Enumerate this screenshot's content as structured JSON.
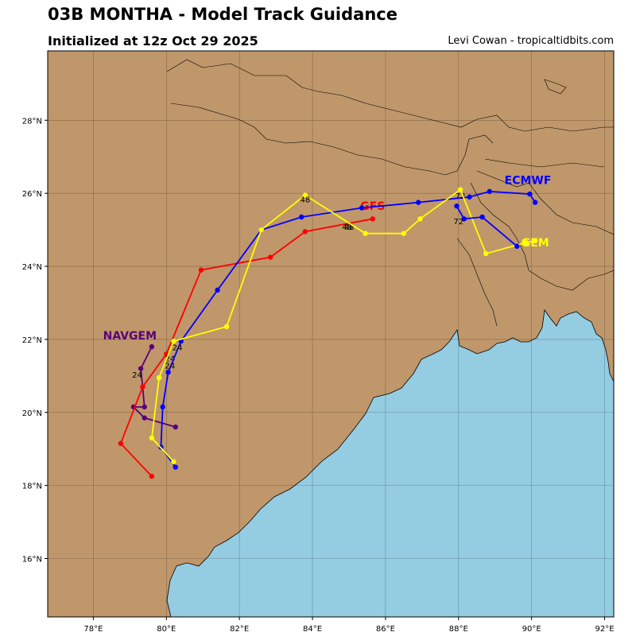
{
  "header": {
    "title": "03B MONTHA - Model Track Guidance",
    "subtitle": "Initialized at 12z Oct 29 2025",
    "credit": "Levi Cowan - tropicaltidbits.com"
  },
  "map": {
    "lon_range": [
      76.75,
      92.25
    ],
    "lat_range": [
      14.4,
      29.9
    ],
    "land_color": "#bf976b",
    "ocean_color": "#94cce2",
    "lon_ticks": [
      {
        "value": 78,
        "label": "78°E"
      },
      {
        "value": 80,
        "label": "80°E"
      },
      {
        "value": 82,
        "label": "82°E"
      },
      {
        "value": 84,
        "label": "84°E"
      },
      {
        "value": 86,
        "label": "86°E"
      },
      {
        "value": 88,
        "label": "88°E"
      },
      {
        "value": 90,
        "label": "90°E"
      },
      {
        "value": 92,
        "label": "92°E"
      }
    ],
    "lat_ticks": [
      {
        "value": 16,
        "label": "16°N"
      },
      {
        "value": 18,
        "label": "18°N"
      },
      {
        "value": 20,
        "label": "20°N"
      },
      {
        "value": 22,
        "label": "22°N"
      },
      {
        "value": 24,
        "label": "24°N"
      },
      {
        "value": 26,
        "label": "26°N"
      },
      {
        "value": 28,
        "label": "28°N"
      }
    ],
    "grid": true
  },
  "chart_data": {
    "type": "scatter",
    "series": [
      {
        "name": "NAVGEM",
        "color": "#5a0078",
        "points": [
          [
            80.25,
            19.6
          ],
          [
            79.4,
            19.85
          ],
          [
            79.1,
            20.15
          ],
          [
            79.4,
            20.15
          ],
          [
            79.3,
            21.2
          ],
          [
            79.6,
            21.8
          ]
        ],
        "hour_labels": [
          {
            "text": "24",
            "lon": 79.2,
            "lat": 20.95
          }
        ],
        "label_pos": [
          79.0,
          22.0
        ]
      },
      {
        "name": "GFS",
        "color": "#ff0000",
        "points": [
          [
            79.6,
            18.25
          ],
          [
            78.75,
            19.15
          ],
          [
            79.35,
            20.7
          ],
          [
            80.0,
            21.6
          ],
          [
            80.95,
            23.9
          ],
          [
            82.85,
            24.25
          ],
          [
            83.8,
            24.95
          ],
          [
            85.65,
            25.3
          ]
        ],
        "hour_labels": [
          {
            "text": "24",
            "lon": 80.1,
            "lat": 21.4
          },
          {
            "text": "48",
            "lon": 84.95,
            "lat": 25.0
          }
        ],
        "label_pos": [
          85.65,
          25.55
        ]
      },
      {
        "name": "ECMWF",
        "color": "#0000ff",
        "points": [
          [
            80.25,
            18.5
          ],
          [
            79.85,
            19.05
          ],
          [
            79.9,
            20.15
          ],
          [
            80.05,
            21.1
          ],
          [
            80.4,
            21.95
          ],
          [
            81.4,
            23.35
          ],
          [
            82.6,
            25.0
          ],
          [
            83.7,
            25.35
          ],
          [
            85.35,
            25.6
          ],
          [
            86.9,
            25.75
          ],
          [
            88.3,
            25.9
          ],
          [
            88.85,
            26.05
          ],
          [
            89.95,
            25.98
          ],
          [
            90.1,
            25.75
          ]
        ],
        "hour_labels": [
          {
            "text": "24",
            "lon": 80.1,
            "lat": 21.2
          },
          {
            "text": "48",
            "lon": 85.0,
            "lat": 25.0
          },
          {
            "text": "72",
            "lon": 88.05,
            "lat": 25.85
          }
        ],
        "label_pos": [
          89.9,
          26.25
        ]
      },
      {
        "name": "GEM",
        "color": "#ffff00",
        "points": [
          [
            80.2,
            18.65
          ],
          [
            79.6,
            19.3
          ],
          [
            79.8,
            20.95
          ],
          [
            80.2,
            21.95
          ],
          [
            81.65,
            22.35
          ],
          [
            82.6,
            25.0
          ],
          [
            83.8,
            25.95
          ],
          [
            85.45,
            24.9
          ],
          [
            86.5,
            24.9
          ],
          [
            86.95,
            25.3
          ],
          [
            88.05,
            26.1
          ],
          [
            88.75,
            24.35
          ],
          [
            89.85,
            24.65
          ],
          [
            90.1,
            24.7
          ]
        ],
        "hour_labels": [
          {
            "text": "24",
            "lon": 80.3,
            "lat": 21.7
          },
          {
            "text": "48",
            "lon": 83.8,
            "lat": 25.75
          }
        ],
        "label_pos": [
          90.1,
          24.55
        ]
      },
      {
        "name": "",
        "color": "#0000ff",
        "points": [
          [
            87.95,
            25.65
          ],
          [
            88.15,
            25.3
          ],
          [
            88.65,
            25.35
          ],
          [
            89.6,
            24.55
          ]
        ],
        "hour_labels": [
          {
            "text": "72",
            "lon": 88.0,
            "lat": 25.15
          }
        ],
        "label_pos": null
      }
    ]
  }
}
